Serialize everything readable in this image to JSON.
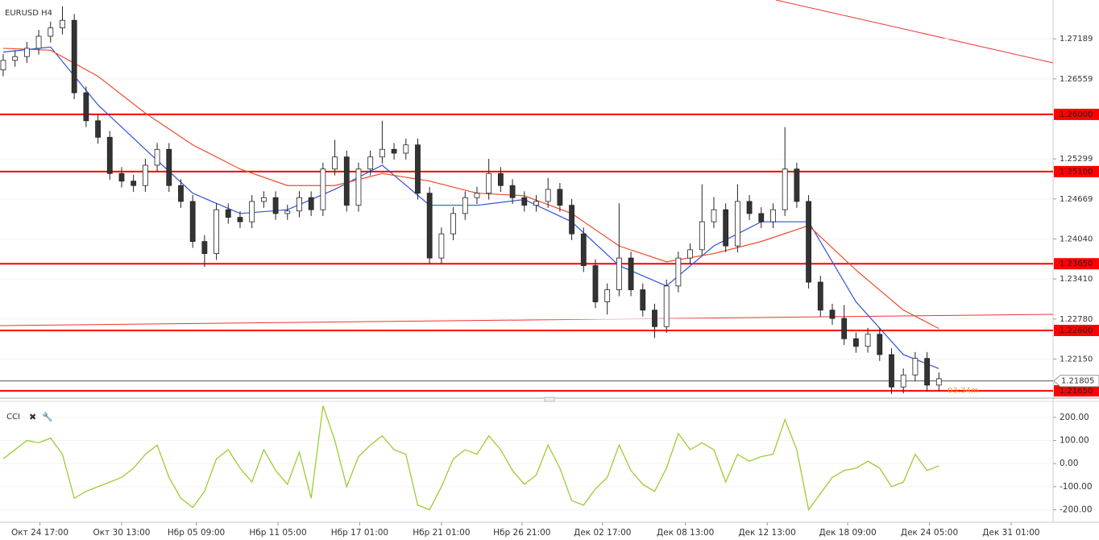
{
  "chart_data": [
    {
      "type": "candlestick",
      "title": "EURUSD H4",
      "xlim": [
        -0.27,
        88.64
      ],
      "xticks": [
        {
          "value": 3.1,
          "label": "Окт 24 17:00"
        },
        {
          "value": 10,
          "label": "Окт 30 13:00"
        },
        {
          "value": 16.3,
          "label": "Нбр 05 09:00"
        },
        {
          "value": 23.2,
          "label": "Нбр 11 05:00"
        },
        {
          "value": 30.1,
          "label": "Нбр 17 01:00"
        },
        {
          "value": 37,
          "label": "Нбр 21 01:00"
        },
        {
          "value": 43.8,
          "label": "Нбр 26 21:00"
        },
        {
          "value": 50.6,
          "label": "Дек 02 17:00"
        },
        {
          "value": 57.6,
          "label": "Дек 08 13:00"
        },
        {
          "value": 64.5,
          "label": "Дек 12 13:00"
        },
        {
          "value": 71.3,
          "label": "Дек 18 09:00"
        },
        {
          "value": 78.2,
          "label": "Дек 24 05:00"
        },
        {
          "value": 85.1,
          "label": "Дек 31 01:00"
        }
      ],
      "ylim": [
        1.2156,
        1.278
      ],
      "yticks": [
        1.27189,
        1.26559,
        1.25299,
        1.24669,
        {
          "value": 1.2404,
          "label": "1.24040"
        },
        {
          "value": 1.2341,
          "label": "1.23410"
        },
        {
          "value": 1.2278,
          "label": "1.22780"
        },
        {
          "value": 1.2215,
          "label": "1.22150"
        }
      ],
      "grid": true,
      "up_color": "#ffffff",
      "down_color": "#333333",
      "candles": [
        [
          1.267,
          1.2695,
          1.266,
          1.2685
        ],
        [
          1.2685,
          1.2701,
          1.2675,
          1.2691
        ],
        [
          1.2691,
          1.2714,
          1.2681,
          1.2704
        ],
        [
          1.2704,
          1.2733,
          1.2694,
          1.2723
        ],
        [
          1.2723,
          1.2746,
          1.2713,
          1.2736
        ],
        [
          1.2736,
          1.277,
          1.2726,
          1.2748
        ],
        [
          1.2748,
          1.2758,
          1.2624,
          1.2634
        ],
        [
          1.2634,
          1.2644,
          1.258,
          1.259
        ],
        [
          1.259,
          1.26,
          1.2554,
          1.2564
        ],
        [
          1.2564,
          1.2574,
          1.2497,
          1.2507
        ],
        [
          1.2507,
          1.2517,
          1.2485,
          1.2495
        ],
        [
          1.2495,
          1.2505,
          1.2478,
          1.2488
        ],
        [
          1.2488,
          1.253,
          1.2478,
          1.252
        ],
        [
          1.252,
          1.2555,
          1.251,
          1.2545
        ],
        [
          1.2545,
          1.2555,
          1.2478,
          1.2488
        ],
        [
          1.2488,
          1.2498,
          1.2453,
          1.2463
        ],
        [
          1.2463,
          1.2473,
          1.239,
          1.24
        ],
        [
          1.24,
          1.241,
          1.236,
          1.2381
        ],
        [
          1.2381,
          1.246,
          1.2371,
          1.245
        ],
        [
          1.245,
          1.246,
          1.2428,
          1.2438
        ],
        [
          1.2438,
          1.2448,
          1.2421,
          1.2431
        ],
        [
          1.2431,
          1.2473,
          1.2421,
          1.2463
        ],
        [
          1.2463,
          1.2479,
          1.2453,
          1.2469
        ],
        [
          1.2469,
          1.2479,
          1.2434,
          1.2444
        ],
        [
          1.2444,
          1.2458,
          1.2434,
          1.2448
        ],
        [
          1.2448,
          1.2479,
          1.2438,
          1.2469
        ],
        [
          1.2469,
          1.2479,
          1.244,
          1.245
        ],
        [
          1.245,
          1.2524,
          1.244,
          1.2514
        ],
        [
          1.2514,
          1.256,
          1.2504,
          1.2533
        ],
        [
          1.2533,
          1.2543,
          1.2447,
          1.2457
        ],
        [
          1.2457,
          1.2524,
          1.2447,
          1.2514
        ],
        [
          1.2514,
          1.2543,
          1.2504,
          1.2533
        ],
        [
          1.2533,
          1.259,
          1.2523,
          1.2545
        ],
        [
          1.2545,
          1.2555,
          1.2529,
          1.2539
        ],
        [
          1.2539,
          1.2562,
          1.2529,
          1.2552
        ],
        [
          1.2552,
          1.2562,
          1.2466,
          1.2476
        ],
        [
          1.2476,
          1.2486,
          1.2364,
          1.2374
        ],
        [
          1.2374,
          1.2422,
          1.2364,
          1.2412
        ],
        [
          1.2412,
          1.2454,
          1.2402,
          1.2444
        ],
        [
          1.2444,
          1.2479,
          1.2434,
          1.2469
        ],
        [
          1.2469,
          1.2486,
          1.2459,
          1.2476
        ],
        [
          1.2476,
          1.253,
          1.2466,
          1.2507
        ],
        [
          1.2507,
          1.2517,
          1.2478,
          1.2488
        ],
        [
          1.2488,
          1.2498,
          1.2459,
          1.2469
        ],
        [
          1.2469,
          1.2479,
          1.2447,
          1.2457
        ],
        [
          1.2457,
          1.2473,
          1.2447,
          1.2463
        ],
        [
          1.2463,
          1.25,
          1.2453,
          1.2482
        ],
        [
          1.2482,
          1.2492,
          1.2447,
          1.2457
        ],
        [
          1.2457,
          1.2467,
          1.2402,
          1.2412
        ],
        [
          1.2412,
          1.2422,
          1.2352,
          1.2362
        ],
        [
          1.2362,
          1.2372,
          1.2295,
          1.2305
        ],
        [
          1.2305,
          1.2334,
          1.2285,
          1.2324
        ],
        [
          1.2324,
          1.246,
          1.2314,
          1.2374
        ],
        [
          1.2374,
          1.2384,
          1.2314,
          1.2324
        ],
        [
          1.2324,
          1.2334,
          1.2282,
          1.2292
        ],
        [
          1.2292,
          1.2302,
          1.2248,
          1.2266
        ],
        [
          1.2266,
          1.234,
          1.2256,
          1.233
        ],
        [
          1.233,
          1.2384,
          1.232,
          1.2374
        ],
        [
          1.2374,
          1.2397,
          1.2364,
          1.2387
        ],
        [
          1.2387,
          1.249,
          1.2377,
          1.2431
        ],
        [
          1.2431,
          1.247,
          1.2421,
          1.245
        ],
        [
          1.245,
          1.246,
          1.2383,
          1.2393
        ],
        [
          1.2393,
          1.249,
          1.2383,
          1.2463
        ],
        [
          1.2463,
          1.2473,
          1.2434,
          1.2444
        ],
        [
          1.2444,
          1.2454,
          1.2421,
          1.2431
        ],
        [
          1.2431,
          1.246,
          1.2421,
          1.245
        ],
        [
          1.245,
          1.258,
          1.244,
          1.2514
        ],
        [
          1.2514,
          1.2524,
          1.2453,
          1.2463
        ],
        [
          1.2463,
          1.2473,
          1.2326,
          1.2336
        ],
        [
          1.2336,
          1.2346,
          1.2282,
          1.2292
        ],
        [
          1.2292,
          1.2302,
          1.2269,
          1.2279
        ],
        [
          1.2279,
          1.23,
          1.2237,
          1.2247
        ],
        [
          1.2247,
          1.2257,
          1.2225,
          1.2235
        ],
        [
          1.2235,
          1.2264,
          1.2225,
          1.2254
        ],
        [
          1.2254,
          1.2264,
          1.2212,
          1.2222
        ],
        [
          1.2222,
          1.2232,
          1.216,
          1.2171
        ],
        [
          1.2171,
          1.22,
          1.2161,
          1.219
        ],
        [
          1.219,
          1.2226,
          1.218,
          1.2216
        ],
        [
          1.2216,
          1.2226,
          1.2164,
          1.2174
        ],
        [
          1.2174,
          1.2194,
          1.2164,
          1.2184
        ]
      ],
      "series": [
        {
          "color": "#2f54d8",
          "x": [
            0,
            4,
            8,
            12,
            16,
            20,
            24,
            28,
            32,
            36,
            40,
            44,
            48,
            52,
            56,
            60,
            64,
            68,
            72,
            76,
            79
          ],
          "values": [
            1.2698,
            1.2706,
            1.2615,
            1.2545,
            1.2476,
            1.2444,
            1.245,
            1.2482,
            1.252,
            1.2457,
            1.2457,
            1.2466,
            1.2431,
            1.2362,
            1.233,
            1.2393,
            1.2431,
            1.2431,
            1.2305,
            1.2222,
            1.22
          ]
        },
        {
          "color": "#f04a2a",
          "x": [
            0,
            4,
            8,
            12,
            16,
            20,
            24,
            28,
            32,
            36,
            40,
            44,
            48,
            52,
            56,
            60,
            64,
            68,
            72,
            76,
            79
          ],
          "values": [
            1.2704,
            1.2701,
            1.266,
            1.2602,
            1.2552,
            1.2514,
            1.2488,
            1.2488,
            1.2507,
            1.2495,
            1.2476,
            1.2472,
            1.2444,
            1.2393,
            1.2368,
            1.2381,
            1.24,
            1.2425,
            1.2355,
            1.2292,
            1.2263
          ]
        }
      ],
      "level_color": "#ff0000",
      "levels": [
        {
          "value": 1.26,
          "label": "1.26000"
        },
        {
          "value": 1.251,
          "label": "1.25100"
        },
        {
          "value": 1.2365,
          "label": "1.23650"
        },
        {
          "value": 1.226,
          "label": "1.22600"
        },
        {
          "value": 1.2165,
          "label": "1.21650"
        }
      ],
      "current": {
        "value": 1.21805,
        "label": "1.21805"
      },
      "timer": "03:34m"
    },
    {
      "type": "line",
      "title": "CCI",
      "color": "#9acd32",
      "xlim": [
        -0.27,
        88.64
      ],
      "ylim": [
        -247,
        262
      ],
      "yticks": [
        {
          "value": 200,
          "label": "200.00"
        },
        {
          "value": 100,
          "label": "100.00"
        },
        {
          "value": 0,
          "label": "0.00"
        },
        {
          "value": -100,
          "label": "-100.00"
        },
        {
          "value": -200,
          "label": "-200.00"
        }
      ],
      "values": [
        20,
        60,
        100,
        90,
        110,
        40,
        -150,
        -120,
        -100,
        -80,
        -60,
        -20,
        40,
        80,
        -60,
        -150,
        -190,
        -120,
        20,
        60,
        -20,
        -80,
        60,
        -30,
        -90,
        50,
        -150,
        250,
        100,
        -100,
        30,
        80,
        120,
        60,
        40,
        -180,
        -200,
        -100,
        20,
        60,
        40,
        120,
        60,
        -30,
        -90,
        -50,
        80,
        -20,
        -160,
        -180,
        -110,
        -60,
        80,
        -30,
        -90,
        -120,
        -20,
        130,
        60,
        90,
        60,
        -80,
        40,
        10,
        30,
        40,
        190,
        60,
        -200,
        -130,
        -60,
        -30,
        -20,
        10,
        -20,
        -100,
        -80,
        40,
        -30,
        -10
      ]
    }
  ]
}
